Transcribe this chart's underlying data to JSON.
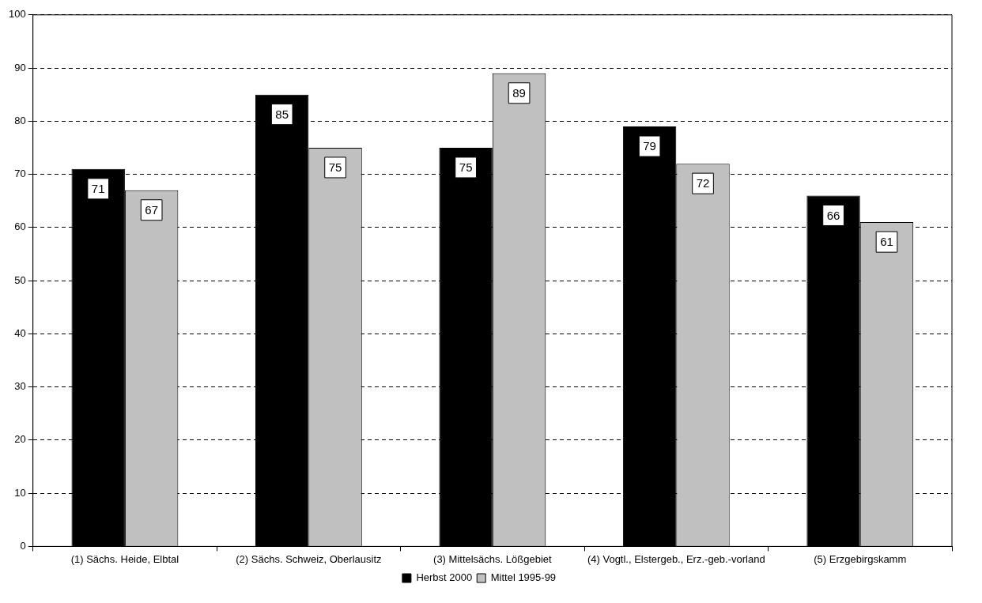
{
  "chart_data": {
    "type": "bar",
    "categories": [
      "(1) Sächs. Heide, Elbtal",
      "(2) Sächs. Schweiz, Oberlausitz",
      "(3) Mittelsächs. Lößgebiet",
      "(4) Vogtl., Elstergeb., Erz.-geb.-vorland",
      "(5) Erzgebirgskamm"
    ],
    "series": [
      {
        "name": "Herbst 2000",
        "color": "#000000",
        "values": [
          71,
          85,
          75,
          79,
          66
        ]
      },
      {
        "name": "Mittel 1995-99",
        "color": "#c0c0c0",
        "values": [
          67,
          75,
          89,
          72,
          61
        ]
      }
    ],
    "ylim": [
      0,
      100
    ],
    "yticks": [
      0,
      10,
      20,
      30,
      40,
      50,
      60,
      70,
      80,
      90,
      100
    ],
    "grid": "y",
    "legend": "bottom",
    "data_labels": true
  }
}
